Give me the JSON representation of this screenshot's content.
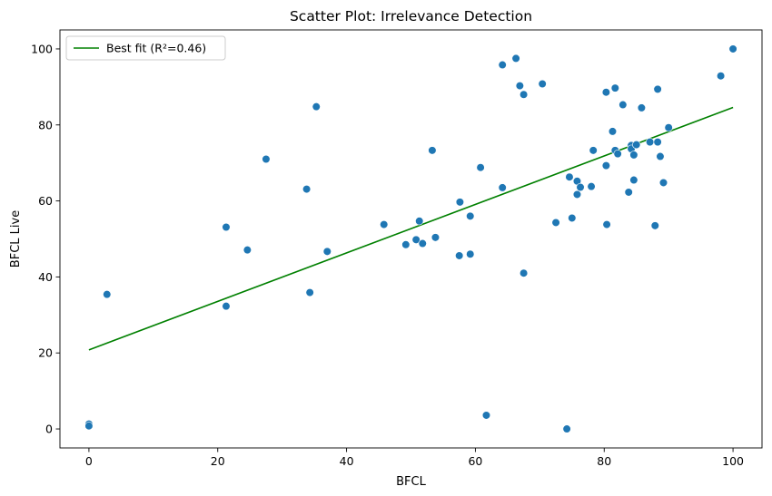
{
  "chart_data": {
    "type": "scatter",
    "title": "Scatter Plot: Irrelevance Detection",
    "xlabel": "BFCL",
    "ylabel": "BFCL Live",
    "xlim": [
      -4.5,
      104.5
    ],
    "ylim": [
      -5,
      105
    ],
    "xticks": [
      0,
      20,
      40,
      60,
      80,
      100
    ],
    "yticks": [
      0,
      20,
      40,
      60,
      80,
      100
    ],
    "grid": false,
    "legend_position": "upper-left",
    "series": [
      {
        "kind": "points",
        "color": "#1f77b4",
        "points": [
          [
            0,
            1.3
          ],
          [
            0,
            0.8
          ],
          [
            2.8,
            35.4
          ],
          [
            21.3,
            53.1
          ],
          [
            21.3,
            32.3
          ],
          [
            24.6,
            47.1
          ],
          [
            27.5,
            71.0
          ],
          [
            33.8,
            63.1
          ],
          [
            34.3,
            35.9
          ],
          [
            35.3,
            84.8
          ],
          [
            37.0,
            46.7
          ],
          [
            45.8,
            53.8
          ],
          [
            49.2,
            48.5
          ],
          [
            50.8,
            49.8
          ],
          [
            51.3,
            54.7
          ],
          [
            51.8,
            48.8
          ],
          [
            53.3,
            73.3
          ],
          [
            53.8,
            50.4
          ],
          [
            57.5,
            45.6
          ],
          [
            57.6,
            59.7
          ],
          [
            59.2,
            56.0
          ],
          [
            59.2,
            46.0
          ],
          [
            60.8,
            68.8
          ],
          [
            61.7,
            3.6
          ],
          [
            64.2,
            95.8
          ],
          [
            64.2,
            63.5
          ],
          [
            66.3,
            97.5
          ],
          [
            66.9,
            90.3
          ],
          [
            67.5,
            88.0
          ],
          [
            67.5,
            41.0
          ],
          [
            70.4,
            90.8
          ],
          [
            72.5,
            54.3
          ],
          [
            74.2,
            0
          ],
          [
            74.6,
            66.3
          ],
          [
            75.0,
            55.5
          ],
          [
            75.8,
            65.2
          ],
          [
            75.8,
            61.7
          ],
          [
            76.3,
            63.6
          ],
          [
            78.0,
            63.8
          ],
          [
            78.3,
            73.3
          ],
          [
            80.3,
            88.6
          ],
          [
            80.3,
            69.3
          ],
          [
            80.4,
            53.8
          ],
          [
            81.3,
            78.3
          ],
          [
            81.7,
            89.7
          ],
          [
            81.7,
            73.3
          ],
          [
            82.1,
            72.4
          ],
          [
            82.9,
            85.3
          ],
          [
            83.8,
            62.3
          ],
          [
            84.2,
            74.6
          ],
          [
            84.2,
            73.7
          ],
          [
            84.6,
            72.1
          ],
          [
            84.6,
            65.5
          ],
          [
            85.0,
            74.8
          ],
          [
            85.8,
            84.5
          ],
          [
            87.1,
            75.5
          ],
          [
            87.9,
            53.5
          ],
          [
            88.3,
            89.4
          ],
          [
            88.3,
            75.5
          ],
          [
            88.7,
            71.7
          ],
          [
            89.2,
            64.8
          ],
          [
            90.0,
            79.3
          ],
          [
            98.1,
            92.9
          ],
          [
            100.0,
            100.0
          ]
        ]
      },
      {
        "kind": "line",
        "name": "Best fit (R²=0.46)",
        "color": "#008000",
        "x": [
          0,
          100
        ],
        "y": [
          20.8,
          84.6
        ]
      }
    ]
  }
}
